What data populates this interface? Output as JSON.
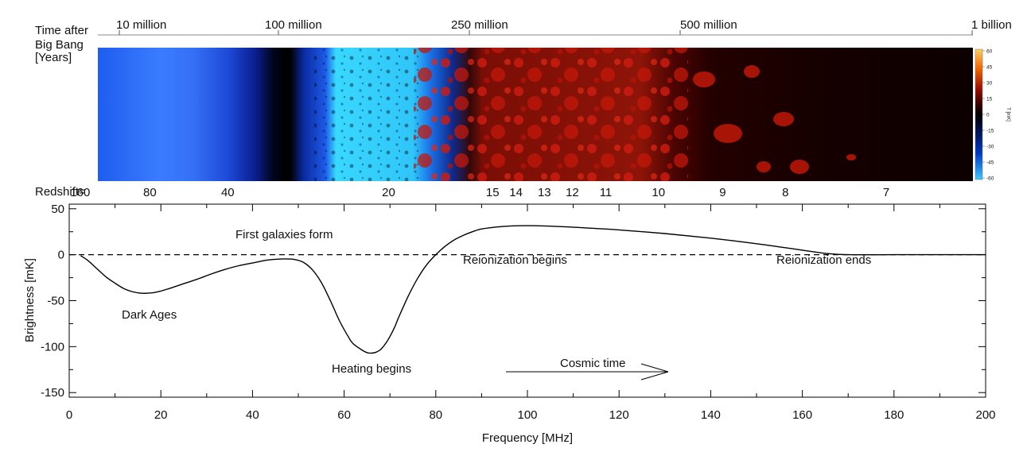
{
  "top_axis": {
    "label": "Time after Big Bang [Years]",
    "label_lines": [
      "Time after",
      "Big Bang",
      "[Years]"
    ],
    "ticks": [
      "10 million",
      "100 million",
      "250 million",
      "500 million",
      "1 billion"
    ]
  },
  "redshift_axis": {
    "label": "Redshift=",
    "ticks": [
      "160",
      "80",
      "40",
      "20",
      "15",
      "14",
      "13",
      "12",
      "11",
      "10",
      "9",
      "8",
      "7"
    ],
    "tick_freqs": [
      2.4,
      17.6,
      34.6,
      69.7,
      92.4,
      97.5,
      103.7,
      109.8,
      117.1,
      128.6,
      142.6,
      156.3,
      178.3
    ]
  },
  "colorbar": {
    "label": "T [mK]",
    "ticks": [
      "60",
      "45",
      "30",
      "15",
      "0",
      "-15",
      "-30",
      "-45",
      "-60"
    ],
    "colors": [
      "#3ec8ff",
      "#0038c8",
      "#00104a",
      "#000000",
      "#3a0000",
      "#a01000",
      "#f06400",
      "#ffd060"
    ]
  },
  "annotations": {
    "first_galaxies": "First galaxies form",
    "dark_ages": "Dark Ages",
    "heating": "Heating begins",
    "reion_begins": "Reionization begins",
    "reion_ends": "Reionization ends",
    "cosmic_time": "Cosmic time"
  },
  "chart_data": {
    "type": "line",
    "xlabel": "Frequency [MHz]",
    "ylabel": "Brightness [mK]",
    "xlim": [
      0,
      200
    ],
    "ylim": [
      -155,
      55
    ],
    "x_ticks": [
      0,
      20,
      40,
      60,
      80,
      100,
      120,
      140,
      160,
      180,
      200
    ],
    "y_ticks": [
      50,
      0,
      -50,
      -100,
      -150
    ],
    "reference_line": {
      "y": 0,
      "style": "dashed"
    },
    "series": [
      {
        "x": [
          2.5,
          4,
          6,
          8,
          10,
          12,
          14,
          16,
          18,
          20,
          22,
          25,
          28,
          31,
          34,
          37,
          40,
          43,
          45,
          47,
          49,
          51,
          53,
          55,
          57,
          59,
          61,
          62,
          64,
          65,
          66,
          67,
          68,
          69,
          70,
          71,
          72,
          74,
          76,
          78,
          80,
          82,
          84,
          86,
          88,
          90,
          94,
          98,
          102,
          108,
          115,
          120,
          130,
          140,
          150,
          155,
          160,
          165,
          170,
          180,
          190,
          200
        ],
        "y": [
          -1,
          -6,
          -15,
          -24,
          -31,
          -37,
          -40.5,
          -42,
          -41.5,
          -39.5,
          -36.5,
          -31.5,
          -26.5,
          -21,
          -16,
          -12,
          -9,
          -6,
          -5,
          -4.5,
          -5,
          -8,
          -16,
          -30,
          -50,
          -72,
          -90,
          -97,
          -104,
          -106.5,
          -107,
          -106,
          -103,
          -97,
          -89,
          -79,
          -67,
          -45,
          -26,
          -11,
          0,
          9,
          16,
          21,
          25,
          28,
          30.5,
          31.5,
          31.5,
          30.5,
          28.5,
          27,
          23,
          18,
          12,
          8.5,
          5,
          1.5,
          0,
          0,
          0,
          0
        ]
      }
    ]
  }
}
